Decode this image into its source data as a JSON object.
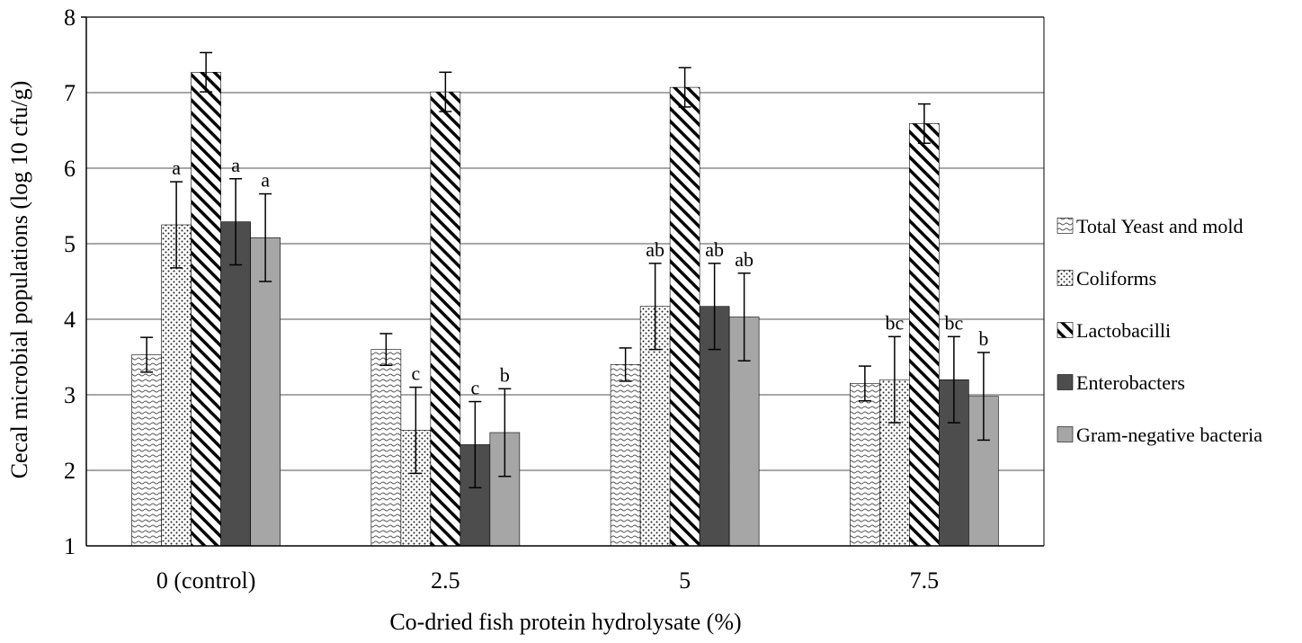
{
  "chart_data": {
    "type": "bar",
    "ylabel": "Cecal microbial populations (log 10 cfu/g)",
    "xlabel": "Co-dried fish protein hydrolysate (%)",
    "ylim": [
      1,
      8
    ],
    "yticks": [
      "1",
      "2",
      "3",
      "4",
      "5",
      "6",
      "7",
      "8"
    ],
    "grid": true,
    "legend_position": "right",
    "categories": [
      "0 (control)",
      "2.5",
      "5",
      "7.5"
    ],
    "series": [
      {
        "name": "Total Yeast and mold",
        "pattern": "wave",
        "color": "#ffffff",
        "values": [
          3.53,
          3.6,
          3.4,
          3.15
        ],
        "errors": [
          0.23,
          0.21,
          0.22,
          0.23
        ],
        "labels": [
          "",
          "",
          "",
          ""
        ]
      },
      {
        "name": "Coliforms",
        "pattern": "dots",
        "color": "#ffffff",
        "values": [
          5.25,
          2.53,
          4.17,
          3.2
        ],
        "errors": [
          0.57,
          0.57,
          0.57,
          0.57
        ],
        "labels": [
          "a",
          "c",
          "ab",
          "bc"
        ]
      },
      {
        "name": "Lactobacilli",
        "pattern": "hatch",
        "color": "#ffffff",
        "values": [
          7.27,
          7.01,
          7.07,
          6.59
        ],
        "errors": [
          0.26,
          0.26,
          0.26,
          0.26
        ],
        "labels": [
          "",
          "",
          "",
          ""
        ]
      },
      {
        "name": "Enterobacters",
        "pattern": "solid",
        "color": "#4d4d4d",
        "values": [
          5.29,
          2.34,
          4.17,
          3.2
        ],
        "errors": [
          0.57,
          0.57,
          0.57,
          0.57
        ],
        "labels": [
          "a",
          "c",
          "ab",
          "bc"
        ]
      },
      {
        "name": "Gram-negative bacteria",
        "pattern": "solid",
        "color": "#a6a6a6",
        "values": [
          5.08,
          2.5,
          4.03,
          2.98
        ],
        "errors": [
          0.58,
          0.58,
          0.58,
          0.58
        ],
        "labels": [
          "a",
          "b",
          "ab",
          "b"
        ]
      }
    ]
  }
}
